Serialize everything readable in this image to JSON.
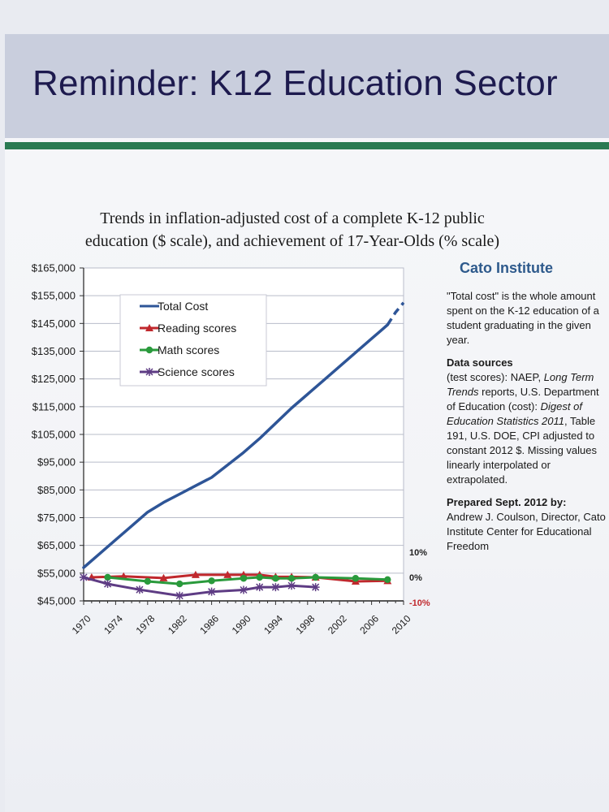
{
  "slide": {
    "title": "Reminder: K12 Education Sector"
  },
  "chart_data": {
    "type": "line",
    "title_line1": "Trends in inflation-adjusted cost of a complete K-12 public",
    "title_line2": "education ($ scale), and achievement of 17-Year-Olds (% scale)",
    "x_ticks": [
      "1970",
      "1974",
      "1978",
      "1982",
      "1986",
      "1990",
      "1994",
      "1998",
      "2002",
      "2006",
      "2010"
    ],
    "xlim": [
      1970,
      2010
    ],
    "y_left_ticks": [
      "$165,000",
      "$155,000",
      "$145,000",
      "$135,000",
      "$125,000",
      "$115,000",
      "$105,000",
      "$95,000",
      "$85,000",
      "$75,000",
      "$65,000",
      "$55,000",
      "$45,000"
    ],
    "y_left_lim": [
      45000,
      165000
    ],
    "y_right_ticks": [
      {
        "label": "10%",
        "value": 10
      },
      {
        "label": "0%",
        "value": 0
      },
      {
        "label": "-10%",
        "value": -10
      }
    ],
    "y_right_lim": [
      -10,
      10
    ],
    "grid": true,
    "legend_position": "top-left",
    "series": [
      {
        "name": "Total Cost",
        "axis": "left",
        "color": "#2e5597",
        "marker": "none",
        "x": [
          1970,
          1972,
          1974,
          1976,
          1978,
          1980,
          1982,
          1984,
          1986,
          1988,
          1990,
          1992,
          1994,
          1996,
          1998,
          2000,
          2002,
          2004,
          2006,
          2007,
          2008
        ],
        "values": [
          57000,
          62000,
          67000,
          72000,
          77000,
          80500,
          83500,
          86500,
          89500,
          94000,
          98500,
          103500,
          109000,
          114500,
          119500,
          124500,
          129500,
          134500,
          139500,
          142000,
          144500
        ],
        "projected": {
          "x": [
            2008,
            2009,
            2010
          ],
          "values": [
            144500,
            149000,
            152500
          ]
        }
      },
      {
        "name": "Reading scores",
        "axis": "right",
        "color": "#c0282d",
        "marker": "triangle",
        "x": [
          1971,
          1975,
          1980,
          1984,
          1988,
          1990,
          1992,
          1994,
          1996,
          1999,
          2004,
          2008
        ],
        "values": [
          0.0,
          0.4,
          -0.3,
          1.0,
          1.0,
          1.0,
          1.0,
          0.2,
          0.2,
          0.0,
          -1.6,
          -1.4
        ]
      },
      {
        "name": "Math scores",
        "axis": "right",
        "color": "#2a9a3c",
        "marker": "circle",
        "x": [
          1973,
          1978,
          1982,
          1986,
          1990,
          1992,
          1994,
          1996,
          1999,
          2004,
          2008
        ],
        "values": [
          0.0,
          -1.6,
          -2.6,
          -1.4,
          -0.4,
          0.0,
          -0.4,
          -0.4,
          0.0,
          -0.4,
          -0.9
        ]
      },
      {
        "name": "Science scores",
        "axis": "right",
        "color": "#5e3c84",
        "marker": "star",
        "x": [
          1970,
          1973,
          1977,
          1982,
          1986,
          1990,
          1992,
          1994,
          1996,
          1999
        ],
        "values": [
          0.0,
          -2.6,
          -4.9,
          -7.3,
          -5.7,
          -5.0,
          -3.9,
          -3.9,
          -3.3,
          -3.9
        ]
      }
    ]
  },
  "sidebar": {
    "org": "Cato Institute",
    "note": "\"Total cost\" is the whole amount spent on the K-12 education of a student graduating in the given year.",
    "sources_head": "Data sources",
    "sources_a": "(test scores): NAEP, ",
    "sources_b": "Long Term Trends",
    "sources_c": " reports, U.S. Department of Education (cost): ",
    "sources_d": "Digest of Education Statistics 2011",
    "sources_e": ", Table 191, U.S. DOE, CPI adjusted to constant 2012 $.  Missing values linearly interpolated or extrapolated.",
    "prepared_head": "Prepared Sept. 2012 by:",
    "prepared_body": "Andrew J. Coulson, Director, Cato Institute Center for Educational Freedom"
  }
}
